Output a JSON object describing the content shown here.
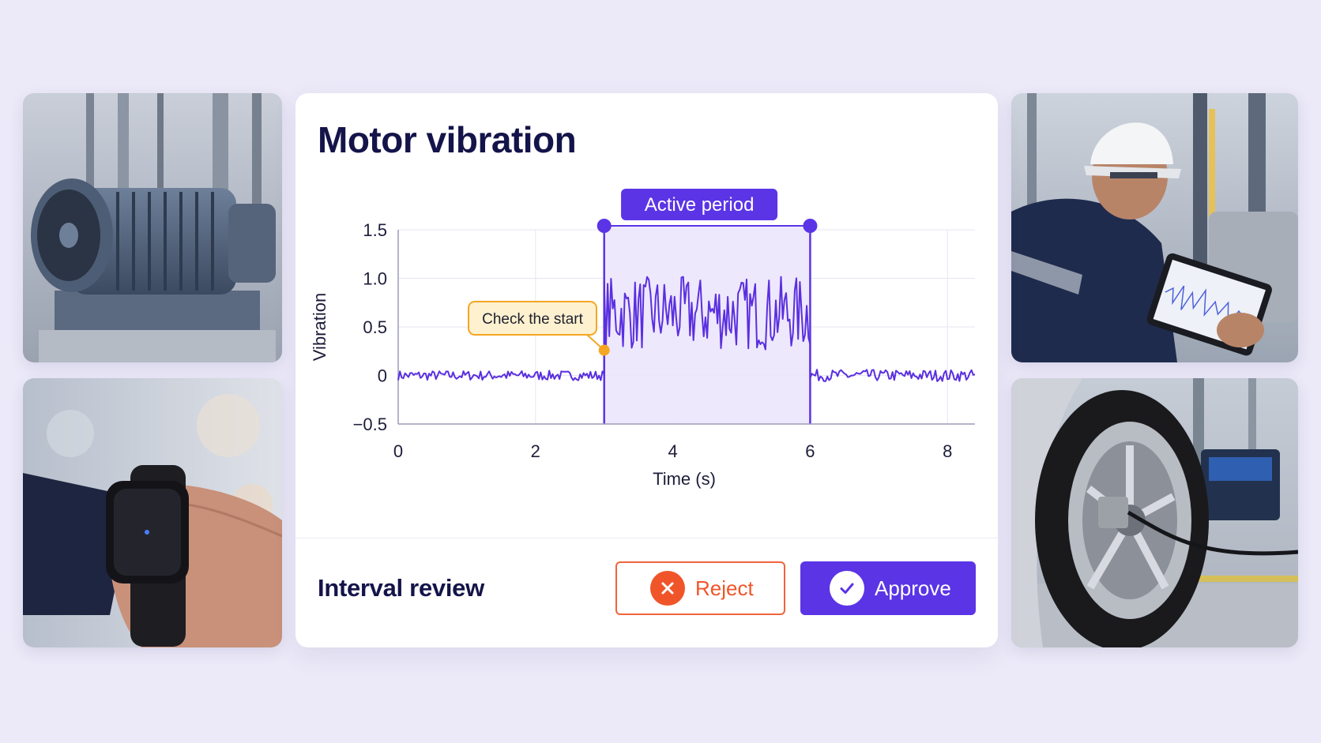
{
  "card": {
    "title": "Motor vibration",
    "footer_label": "Interval review"
  },
  "buttons": {
    "reject_label": "Reject",
    "approve_label": "Approve"
  },
  "colors": {
    "accent": "#5b34e6",
    "signal": "#5a2fe0",
    "active_fill": "#ece6fc",
    "annotation": "#f5a623",
    "reject": "#f0552a"
  },
  "images": [
    {
      "name": "industrial-motor-photo"
    },
    {
      "name": "wrist-sensor-photo"
    },
    {
      "name": "engineer-tablet-photo"
    },
    {
      "name": "wheel-sensor-photo"
    }
  ],
  "chart_data": {
    "type": "line",
    "title": "",
    "xlabel": "Time (s)",
    "ylabel": "Vibration",
    "xlim": [
      0,
      8.4
    ],
    "ylim": [
      -0.5,
      1.5
    ],
    "x_ticks": [
      0,
      2,
      4,
      6,
      8
    ],
    "y_ticks": [
      1.5,
      1.0,
      0.5,
      0,
      -0.5
    ],
    "y_tick_labels": [
      "1.5",
      "1.0",
      "0.5",
      "0",
      "−0.5"
    ],
    "grid": true,
    "active_period": {
      "label": "Active period",
      "start": 3.0,
      "end": 6.0
    },
    "annotation": {
      "label": "Check the start",
      "x": 3.0,
      "y": 0.26
    },
    "series": [
      {
        "baseline": {
          "x_start": 0,
          "x_end": 3.0,
          "mean": 0.0,
          "amplitude": 0.05
        },
        "active": {
          "x_start": 3.0,
          "x_end": 6.0,
          "mean": 0.64,
          "amplitude": 0.38
        },
        "tail": {
          "x_start": 6.0,
          "x_end": 8.4,
          "mean": 0.0,
          "amplitude": 0.06
        }
      }
    ]
  }
}
